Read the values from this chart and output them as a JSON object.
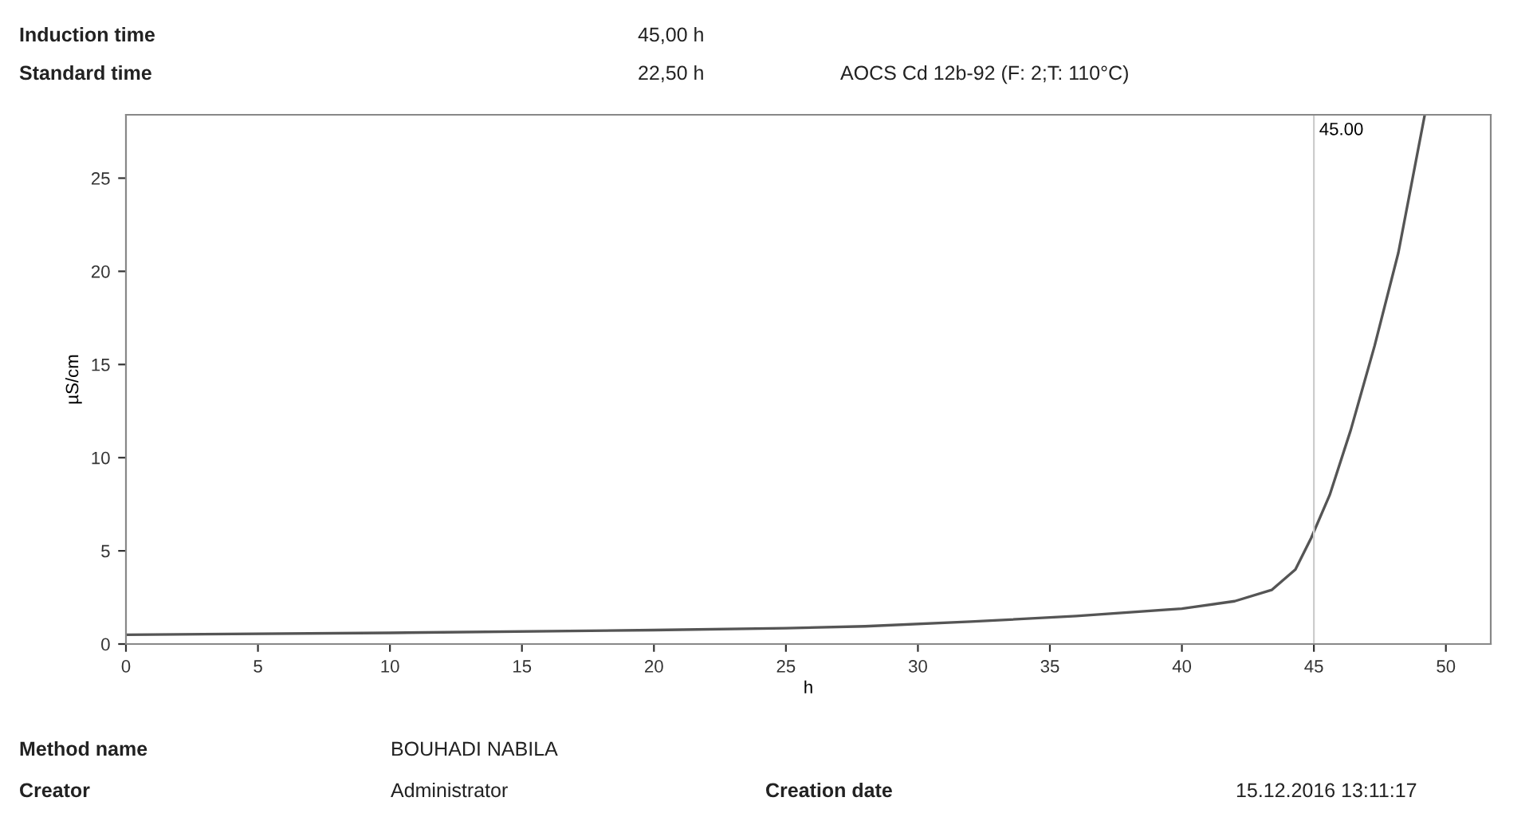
{
  "chart_data": {
    "type": "line",
    "xlabel": "h",
    "ylabel": "µS/cm",
    "x": [
      0,
      10,
      20,
      25,
      28,
      32,
      36,
      40,
      42,
      43.4,
      44.3,
      44.9,
      45.6,
      46.4,
      47.3,
      48.2,
      49.2
    ],
    "series": [
      {
        "color": "#555555",
        "values": [
          0.5,
          0.6,
          0.75,
          0.85,
          0.95,
          1.2,
          1.5,
          1.9,
          2.3,
          2.9,
          4,
          5.7,
          8,
          11.5,
          16,
          21,
          28.4
        ]
      }
    ],
    "xlim": [
      0,
      51.7
    ],
    "ylim": [
      0,
      28.4
    ],
    "xticks": [
      0,
      5,
      10,
      15,
      20,
      25,
      30,
      35,
      40,
      45,
      50
    ],
    "yticks": [
      0,
      5,
      10,
      15,
      20,
      25
    ],
    "ref_lines": [
      {
        "axis": "x",
        "value": 45,
        "label": "45.00",
        "color": "#cccccc"
      }
    ],
    "grid": false,
    "legend": false,
    "marker": "none",
    "line_style": "solid",
    "annotations": [
      "Induction time",
      "45,00 h",
      "Standard time",
      "22,50 h",
      "AOCS Cd 12b-92 (F: 2;T: 110°C)",
      "Method name",
      "BOUHADI NABILA",
      "Creator",
      "Administrator",
      "Creation date",
      "15.12.2016 13:11:17"
    ]
  }
}
